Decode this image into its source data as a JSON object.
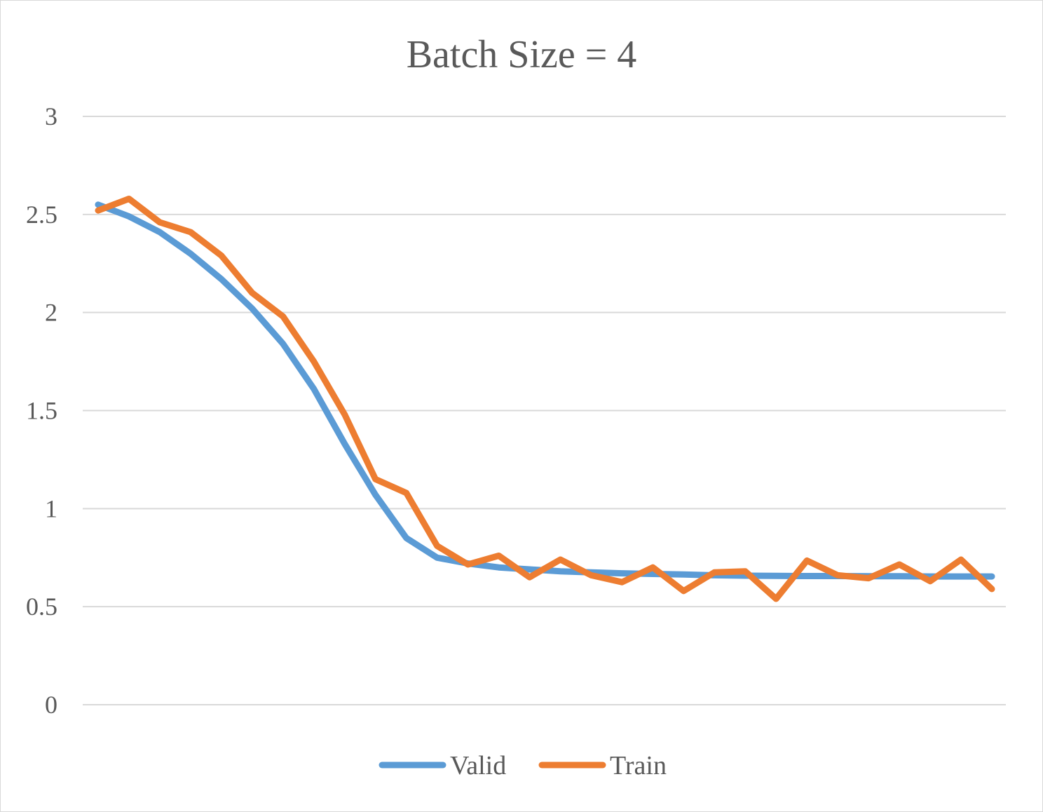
{
  "chart_data": {
    "type": "line",
    "title": "Batch Size = 4",
    "xlabel": "",
    "ylabel": "",
    "ylim": [
      0,
      3
    ],
    "yticks": [
      "0",
      "0.5",
      "1",
      "1.5",
      "2",
      "2.5",
      "3"
    ],
    "grid": true,
    "legend_position": "bottom",
    "x": [
      1,
      2,
      3,
      4,
      5,
      6,
      7,
      8,
      9,
      10,
      11,
      12,
      13,
      14,
      15,
      16,
      17,
      18,
      19,
      20,
      21,
      22,
      23,
      24,
      25,
      26,
      27,
      28,
      29,
      30
    ],
    "series": [
      {
        "name": "Valid",
        "color": "#5b9bd5",
        "values": [
          2.55,
          2.49,
          2.41,
          2.3,
          2.17,
          2.02,
          1.84,
          1.61,
          1.33,
          1.07,
          0.85,
          0.75,
          0.72,
          0.7,
          0.69,
          0.68,
          0.675,
          0.67,
          0.667,
          0.664,
          0.66,
          0.658,
          0.657,
          0.656,
          0.656,
          0.655,
          0.655,
          0.654,
          0.654,
          0.654
        ]
      },
      {
        "name": "Train",
        "color": "#ed7d31",
        "values": [
          2.52,
          2.58,
          2.46,
          2.41,
          2.29,
          2.1,
          1.98,
          1.75,
          1.48,
          1.15,
          1.08,
          0.81,
          0.715,
          0.76,
          0.65,
          0.74,
          0.66,
          0.625,
          0.7,
          0.58,
          0.675,
          0.68,
          0.54,
          0.735,
          0.66,
          0.645,
          0.715,
          0.63,
          0.74,
          0.59
        ]
      }
    ]
  }
}
